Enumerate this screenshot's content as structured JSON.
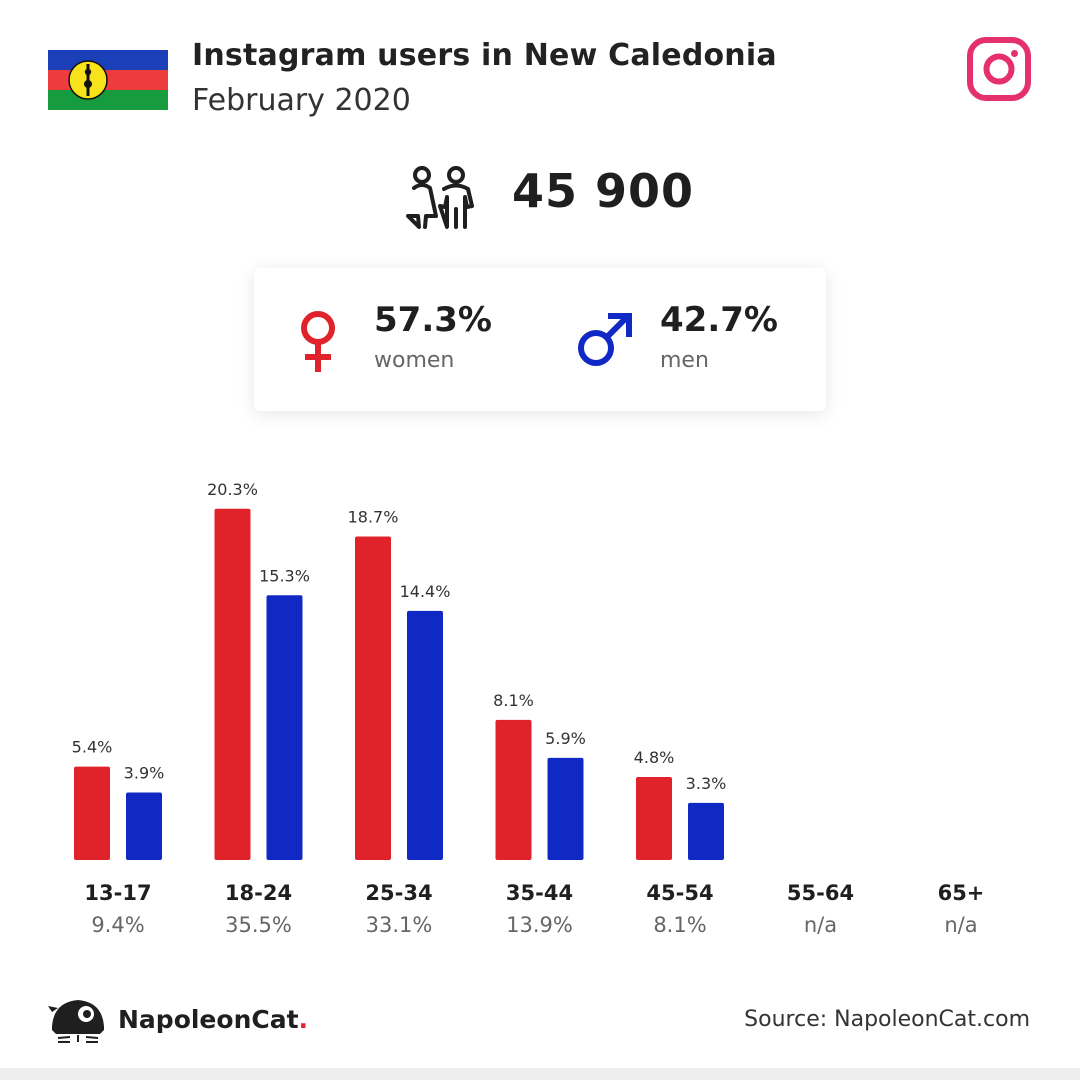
{
  "header": {
    "title": "Instagram users in New Caledonia",
    "subtitle": "February 2020"
  },
  "total": "45 900",
  "gender": {
    "women": {
      "value": "57.3%",
      "label": "women"
    },
    "men": {
      "value": "42.7%",
      "label": "men"
    }
  },
  "colors": {
    "women": "#e0232a",
    "men": "#1028c4",
    "instagram": "#e4306c"
  },
  "chart_data": {
    "type": "bar",
    "categories": [
      "13-17",
      "18-24",
      "25-34",
      "35-44",
      "45-54",
      "55-64",
      "65+"
    ],
    "category_totals": [
      "9.4%",
      "35.5%",
      "33.1%",
      "13.9%",
      "8.1%",
      "n/a",
      "n/a"
    ],
    "series": [
      {
        "name": "women",
        "values": [
          5.4,
          20.3,
          18.7,
          8.1,
          4.8,
          null,
          null
        ]
      },
      {
        "name": "men",
        "values": [
          3.9,
          15.3,
          14.4,
          5.9,
          3.3,
          null,
          null
        ]
      }
    ],
    "ylim": [
      0,
      22
    ],
    "grid": false,
    "legend": "none"
  },
  "footer": {
    "brand": "NapoleonCat",
    "brand_dot": ".",
    "source": "Source: NapoleonCat.com"
  }
}
